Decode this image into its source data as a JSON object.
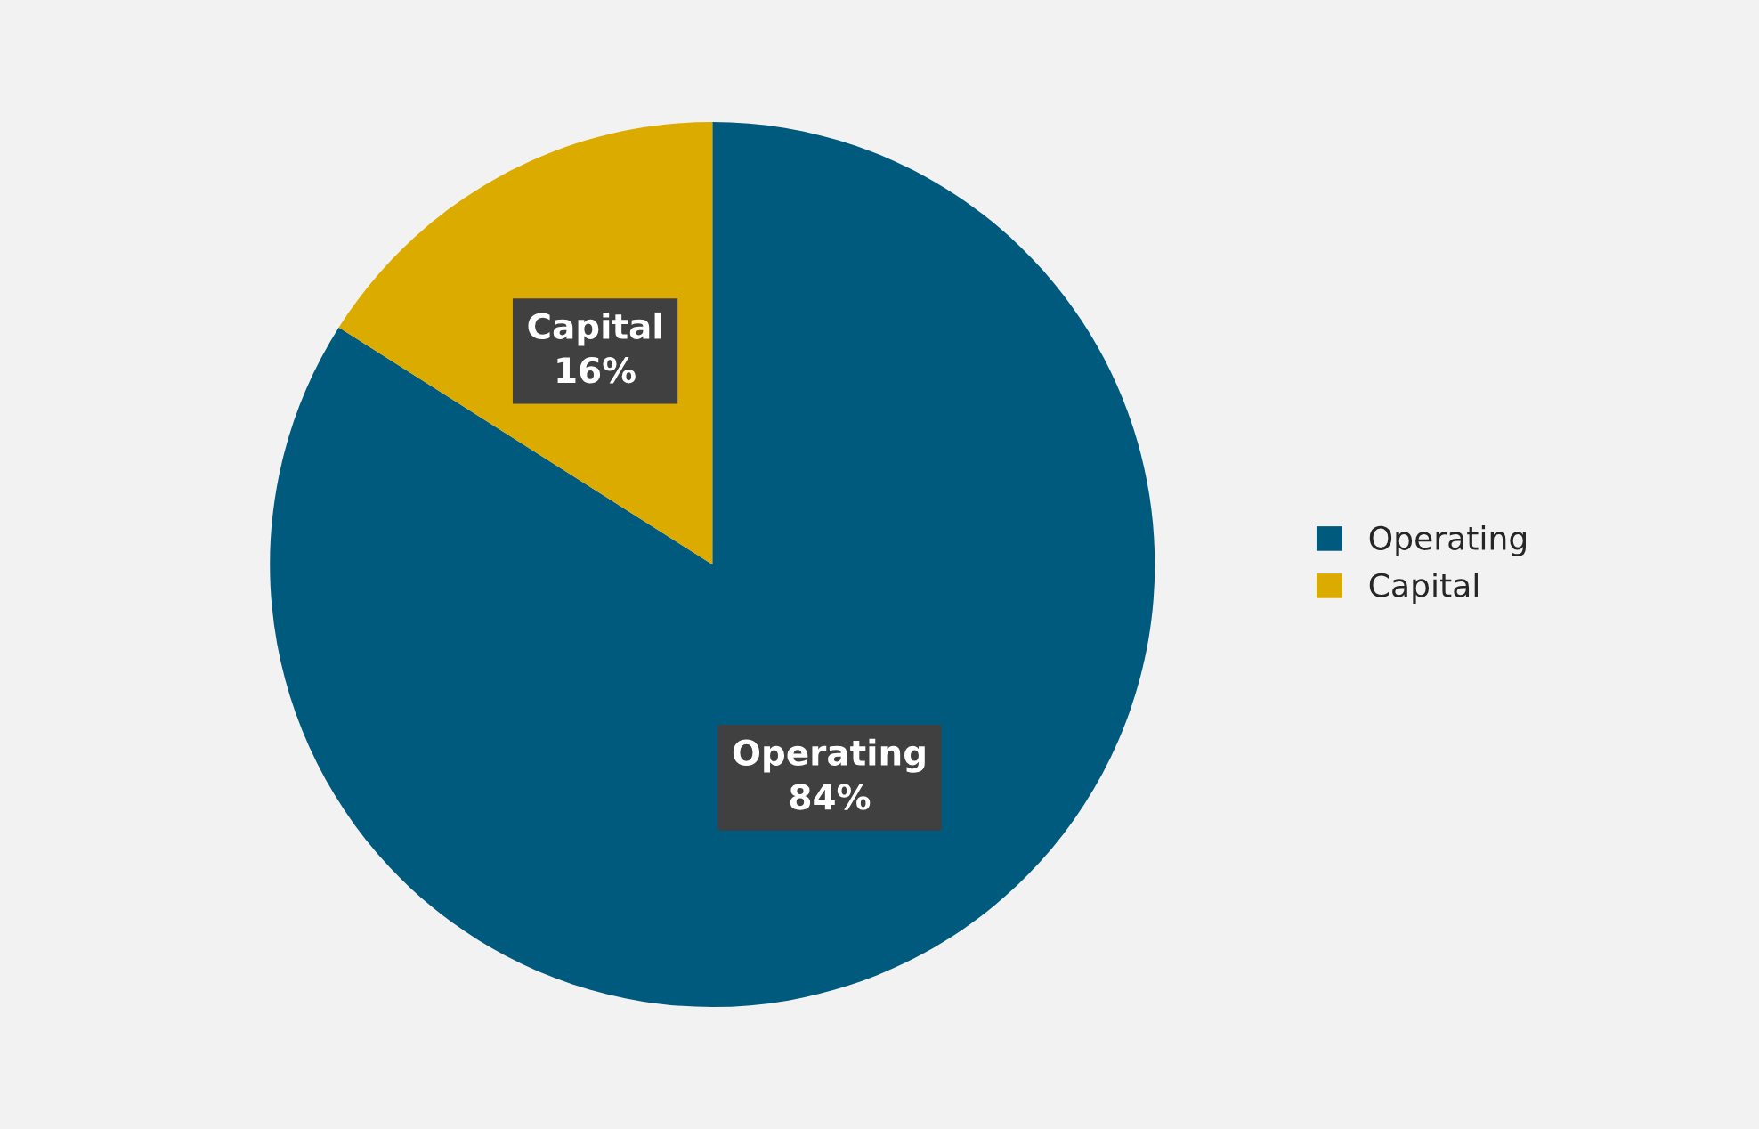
{
  "chart_data": {
    "type": "pie",
    "categories": [
      "Operating",
      "Capital"
    ],
    "values": [
      84,
      16
    ],
    "value_labels": [
      "84%",
      "16%"
    ],
    "colors": [
      "#005a7e",
      "#dbab00"
    ],
    "legend": "right"
  }
}
